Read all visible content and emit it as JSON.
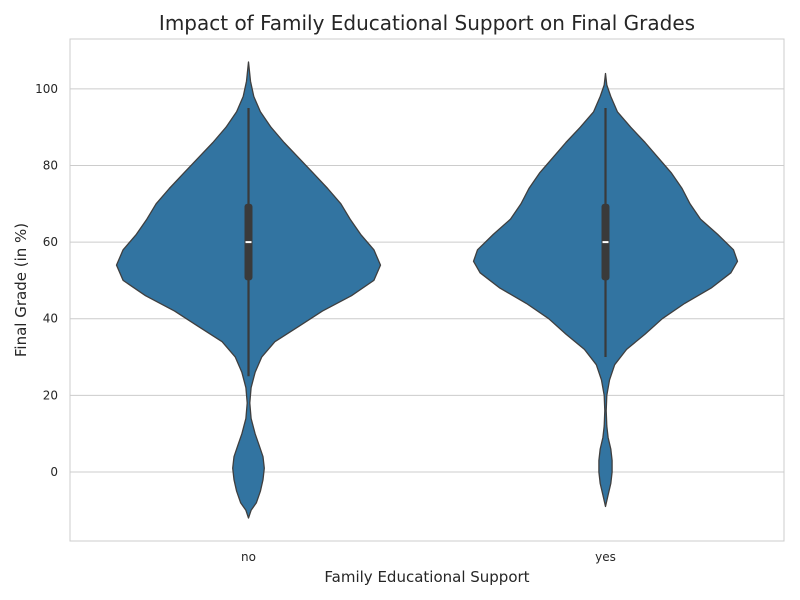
{
  "chart_data": {
    "type": "violin",
    "title": "Impact of Family Educational Support on Final Grades",
    "xlabel": "Family Educational Support",
    "ylabel": "Final Grade (in %)",
    "categories": [
      "no",
      "yes"
    ],
    "ylim": [
      -18,
      113
    ],
    "yticks": [
      0,
      20,
      40,
      60,
      80,
      100
    ],
    "grid": "horizontal",
    "violin_color": "#3274a1",
    "box_color": "#3a3a3a",
    "median_color": "#ffffff",
    "violins": [
      {
        "category": "no",
        "whisker_low": 25,
        "q1": 50,
        "median": 60,
        "q3": 70,
        "whisker_high": 95,
        "density": [
          [
            -12,
            0
          ],
          [
            -10,
            0.02
          ],
          [
            -8,
            0.06
          ],
          [
            -5,
            0.09
          ],
          [
            -2,
            0.11
          ],
          [
            1,
            0.12
          ],
          [
            4,
            0.11
          ],
          [
            7,
            0.08
          ],
          [
            10,
            0.05
          ],
          [
            14,
            0.02
          ],
          [
            18,
            0.01
          ],
          [
            22,
            0.02
          ],
          [
            26,
            0.05
          ],
          [
            30,
            0.1
          ],
          [
            34,
            0.2
          ],
          [
            38,
            0.38
          ],
          [
            42,
            0.56
          ],
          [
            46,
            0.78
          ],
          [
            50,
            0.95
          ],
          [
            54,
            1.0
          ],
          [
            58,
            0.95
          ],
          [
            62,
            0.85
          ],
          [
            66,
            0.77
          ],
          [
            70,
            0.7
          ],
          [
            74,
            0.6
          ],
          [
            78,
            0.49
          ],
          [
            82,
            0.38
          ],
          [
            86,
            0.27
          ],
          [
            90,
            0.17
          ],
          [
            94,
            0.09
          ],
          [
            98,
            0.04
          ],
          [
            102,
            0.015
          ],
          [
            107,
            0
          ]
        ]
      },
      {
        "category": "yes",
        "whisker_low": 30,
        "q1": 50,
        "median": 60,
        "q3": 70,
        "whisker_high": 95,
        "density": [
          [
            -9,
            0
          ],
          [
            -6,
            0.02
          ],
          [
            -3,
            0.04
          ],
          [
            0,
            0.05
          ],
          [
            3,
            0.05
          ],
          [
            6,
            0.04
          ],
          [
            9,
            0.02
          ],
          [
            12,
            0.01
          ],
          [
            16,
            0.005
          ],
          [
            20,
            0.01
          ],
          [
            24,
            0.03
          ],
          [
            28,
            0.07
          ],
          [
            32,
            0.16
          ],
          [
            36,
            0.3
          ],
          [
            40,
            0.43
          ],
          [
            44,
            0.6
          ],
          [
            48,
            0.8
          ],
          [
            52,
            0.95
          ],
          [
            55,
            1.0
          ],
          [
            58,
            0.97
          ],
          [
            62,
            0.85
          ],
          [
            66,
            0.72
          ],
          [
            70,
            0.64
          ],
          [
            74,
            0.58
          ],
          [
            78,
            0.5
          ],
          [
            82,
            0.4
          ],
          [
            86,
            0.3
          ],
          [
            90,
            0.19
          ],
          [
            94,
            0.09
          ],
          [
            98,
            0.04
          ],
          [
            101,
            0.01
          ],
          [
            104,
            0
          ]
        ]
      }
    ]
  }
}
